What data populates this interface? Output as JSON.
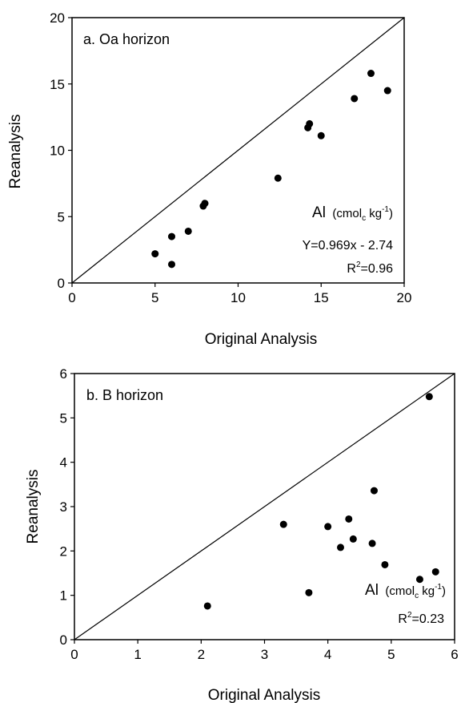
{
  "chart_data": [
    {
      "type": "scatter",
      "panel_label": "a. Oa horizon",
      "xlabel": "Original Analysis",
      "ylabel": "Reanalysis",
      "xlim": [
        0,
        20
      ],
      "ylim": [
        0,
        20
      ],
      "xticks": [
        0,
        5,
        10,
        15,
        20
      ],
      "yticks": [
        0,
        5,
        10,
        15,
        20
      ],
      "xtick_labels": [
        "0",
        "5",
        "10",
        "15",
        "20"
      ],
      "ytick_labels": [
        "0",
        "5",
        "10",
        "15",
        "20"
      ],
      "reference_line": "1:1",
      "grid": false,
      "points": [
        {
          "x": 5.0,
          "y": 2.2
        },
        {
          "x": 6.0,
          "y": 3.5
        },
        {
          "x": 6.0,
          "y": 1.4
        },
        {
          "x": 7.0,
          "y": 3.9
        },
        {
          "x": 7.9,
          "y": 5.8
        },
        {
          "x": 8.0,
          "y": 6.0
        },
        {
          "x": 12.4,
          "y": 7.9
        },
        {
          "x": 14.2,
          "y": 11.7
        },
        {
          "x": 14.3,
          "y": 12.0
        },
        {
          "x": 15.0,
          "y": 11.1
        },
        {
          "x": 17.0,
          "y": 13.9
        },
        {
          "x": 18.0,
          "y": 15.8
        },
        {
          "x": 19.0,
          "y": 14.5
        }
      ],
      "annotation": {
        "label_main": "Al",
        "label_unit_prefix": "(cmol",
        "label_unit_sub": "c",
        "label_unit_mid": " kg",
        "label_unit_sup": "-1",
        "label_unit_suffix": ")",
        "equation": "Y=0.969x - 2.74",
        "r2_prefix": "R",
        "r2_sup": "2",
        "r2_value": "=0.96"
      }
    },
    {
      "type": "scatter",
      "panel_label": "b. B horizon",
      "xlabel": "Original Analysis",
      "ylabel": "Reanalysis",
      "xlim": [
        0,
        6
      ],
      "ylim": [
        0,
        6
      ],
      "xticks": [
        0,
        1,
        2,
        3,
        4,
        5,
        6
      ],
      "yticks": [
        0,
        1,
        2,
        3,
        4,
        5,
        6
      ],
      "xtick_labels": [
        "0",
        "1",
        "2",
        "3",
        "4",
        "5",
        "6"
      ],
      "ytick_labels": [
        "0",
        "1",
        "2",
        "3",
        "4",
        "5",
        "6"
      ],
      "reference_line": "1:1",
      "grid": false,
      "points": [
        {
          "x": 2.1,
          "y": 0.76
        },
        {
          "x": 3.3,
          "y": 2.6
        },
        {
          "x": 3.7,
          "y": 1.06
        },
        {
          "x": 4.0,
          "y": 2.55
        },
        {
          "x": 4.2,
          "y": 2.08
        },
        {
          "x": 4.33,
          "y": 2.72
        },
        {
          "x": 4.4,
          "y": 2.27
        },
        {
          "x": 4.7,
          "y": 2.17
        },
        {
          "x": 4.73,
          "y": 3.36
        },
        {
          "x": 4.9,
          "y": 1.69
        },
        {
          "x": 5.45,
          "y": 1.36
        },
        {
          "x": 5.6,
          "y": 5.48
        },
        {
          "x": 5.7,
          "y": 1.53
        }
      ],
      "annotation": {
        "label_main": "Al",
        "label_unit_prefix": "(cmol",
        "label_unit_sub": "c",
        "label_unit_mid": " kg",
        "label_unit_sup": "-1",
        "label_unit_suffix": ")",
        "r2_prefix": "R",
        "r2_sup": "2",
        "r2_value": "=0.23"
      }
    }
  ]
}
